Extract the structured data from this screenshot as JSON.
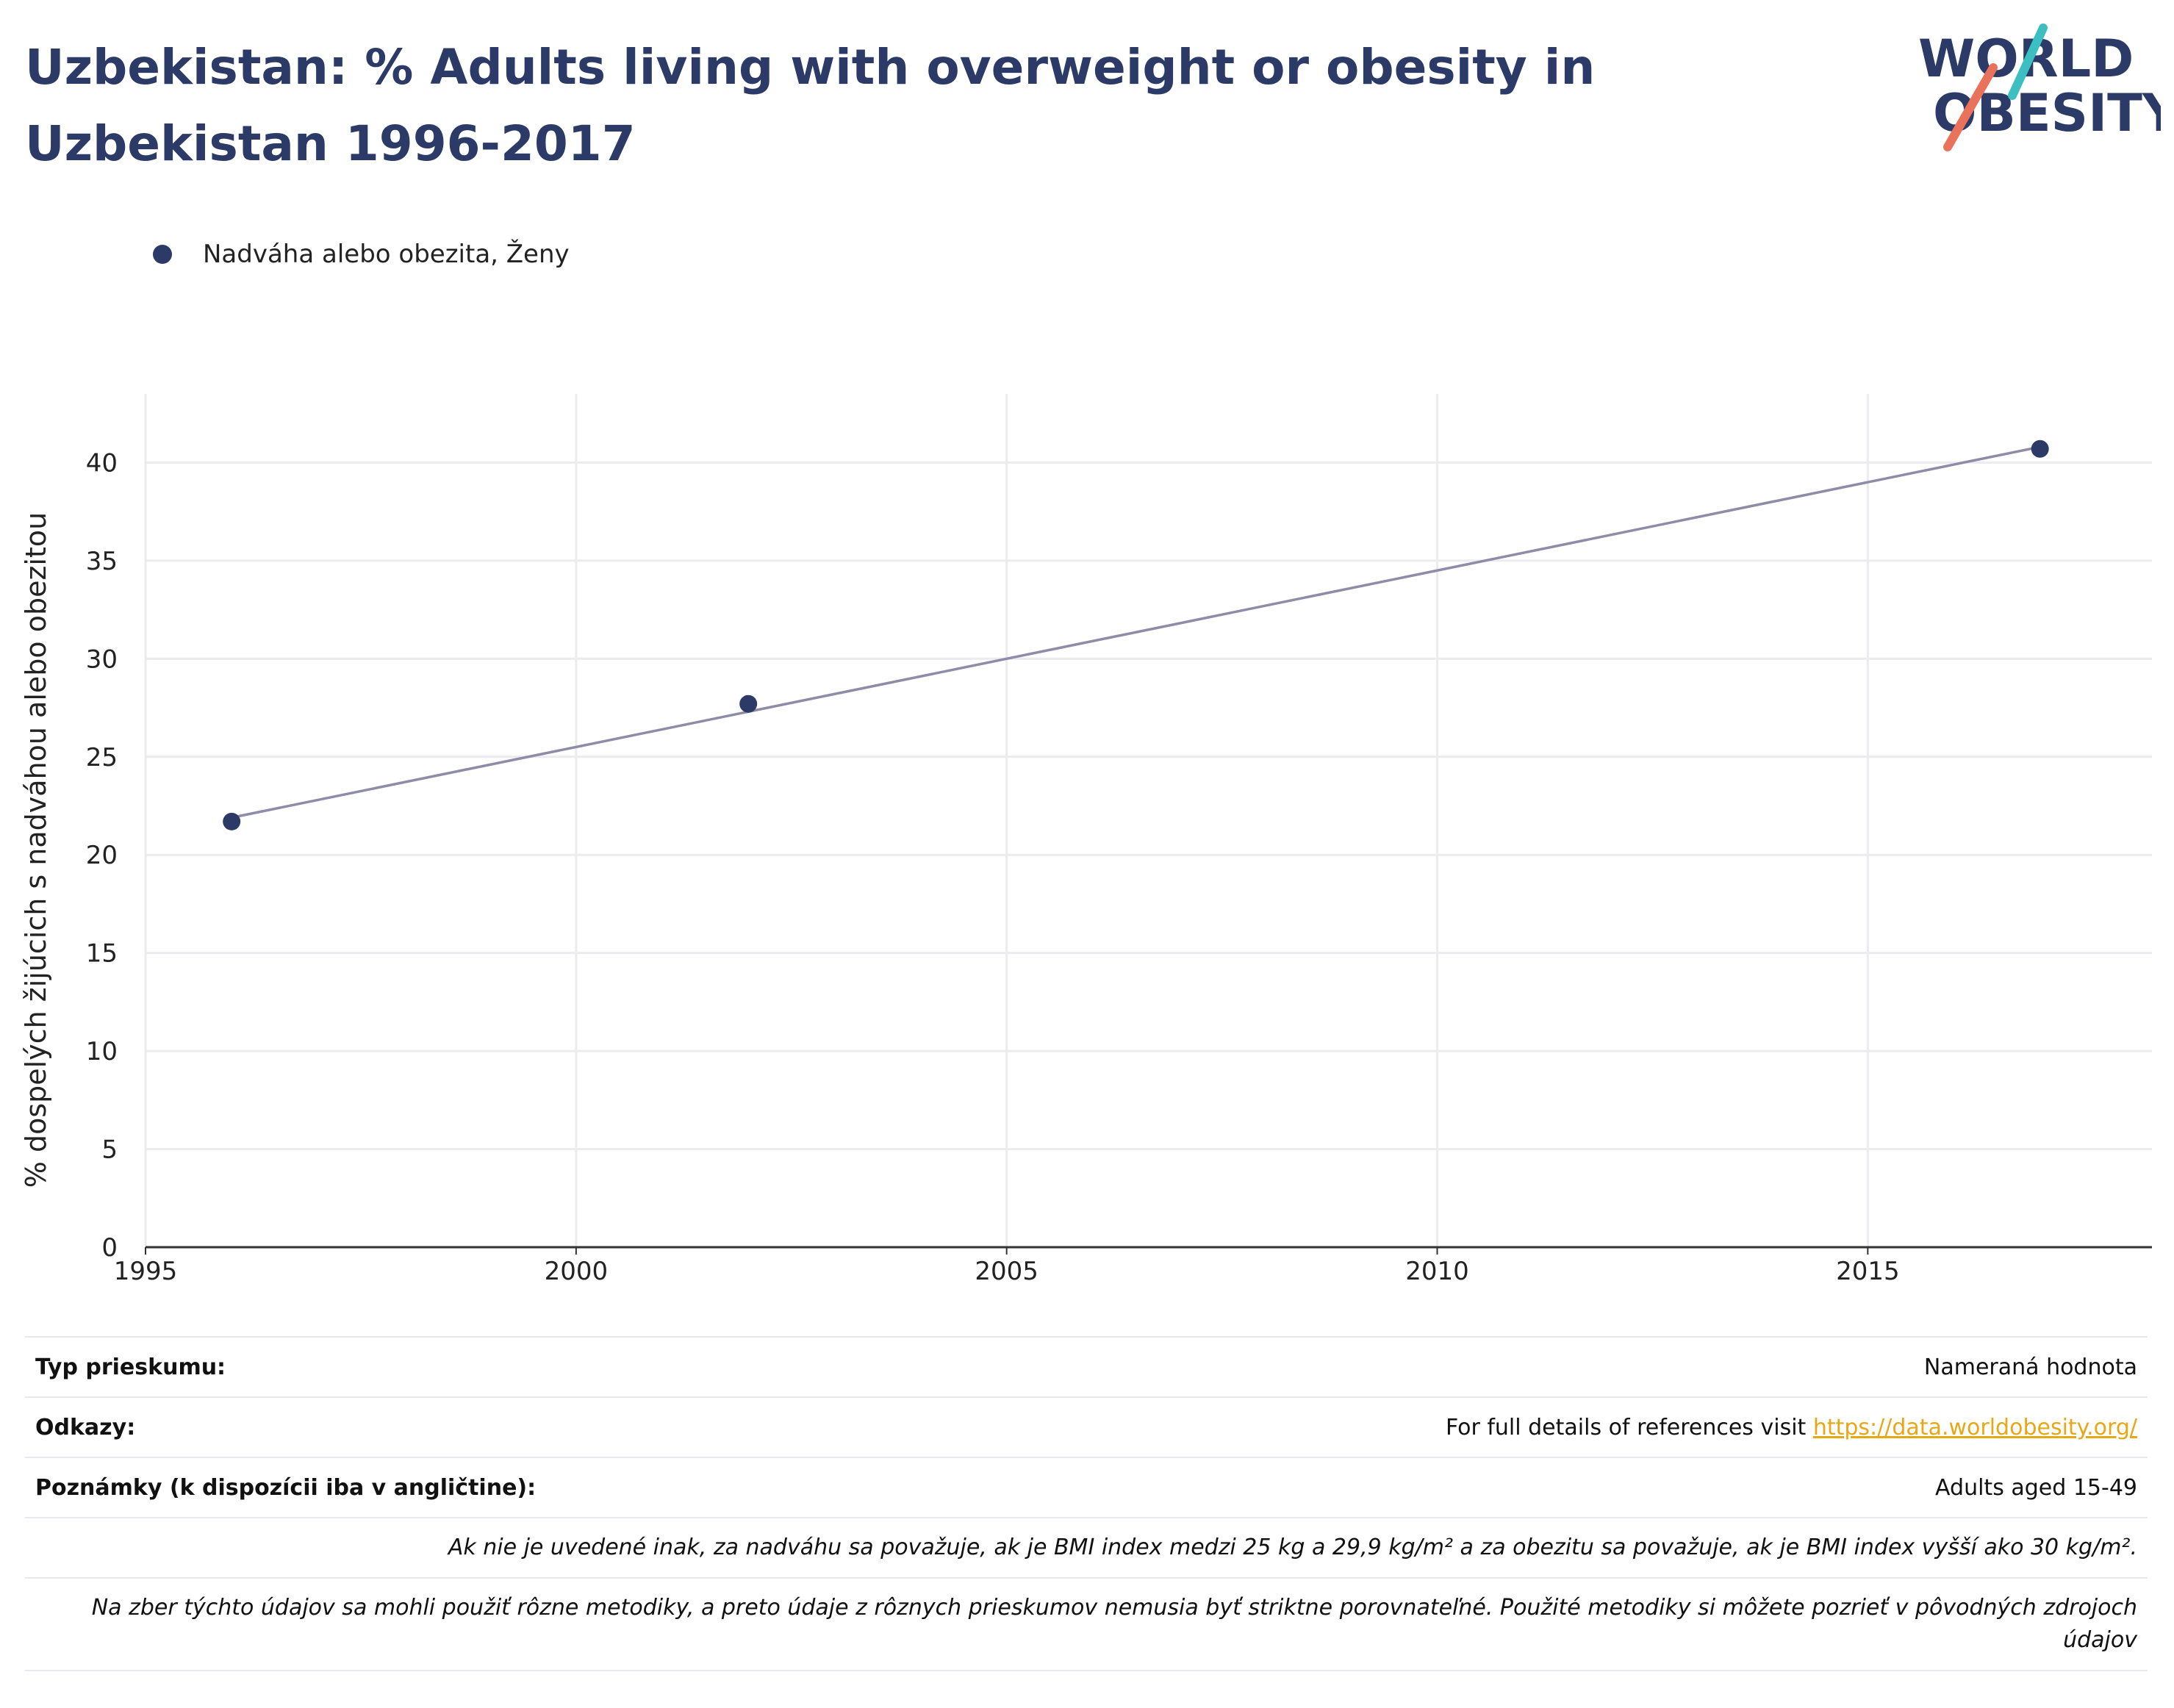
{
  "header": {
    "title": "Uzbekistan: % Adults living with overweight or obesity in Uzbekistan 1996-2017",
    "logo_line1": "WORLD",
    "logo_line2": "OBESITY"
  },
  "colors": {
    "series": "#2b3a67",
    "line": "#8e8ca6",
    "grid": "#ebebf0",
    "link": "#e6a817",
    "logo_teal": "#3bbfc1",
    "logo_coral": "#e8735a"
  },
  "chart_data": {
    "type": "line",
    "title": "Uzbekistan: % Adults living with overweight or obesity in Uzbekistan 1996-2017",
    "ylabel": "% dospelých žijúcich s nadváhou alebo obezitou",
    "xlabel": "",
    "xlim": [
      1995,
      2018.3
    ],
    "ylim": [
      0,
      43.5
    ],
    "x_ticks": [
      1995,
      2000,
      2005,
      2010,
      2015
    ],
    "y_ticks": [
      0,
      5,
      10,
      15,
      20,
      25,
      30,
      35,
      40
    ],
    "grid": true,
    "legend_position": "top-left",
    "series": [
      {
        "name": "Nadváha alebo obezita, Ženy",
        "x": [
          1996,
          2002,
          2017
        ],
        "y": [
          21.7,
          27.7,
          40.7
        ]
      }
    ],
    "trend_line": {
      "x": [
        1996,
        2017
      ],
      "y": [
        21.9,
        40.8
      ]
    }
  },
  "info": {
    "survey_type_label": "Typ prieskumu:",
    "survey_type_value": "Nameraná hodnota",
    "references_label": "Odkazy:",
    "references_text": "For full details of references visit ",
    "references_link": "https://data.worldobesity.org/",
    "notes_label": "Poznámky (k dispozícii iba v angličtine):",
    "notes_value": "Adults aged 15-49",
    "bmi_note": "Ak nie je uvedené inak, za nadváhu sa považuje, ak je BMI index medzi 25 kg a 29,9 kg/m² a za obezitu sa považuje, ak je BMI index vyšší ako 30 kg/m².",
    "method_note": "Na zber týchto údajov sa mohli použiť rôzne metodiky, a preto údaje z rôznych prieskumov nemusia byť striktne porovnateľné. Použité metodiky si môžete pozrieť v pôvodných zdrojoch údajov"
  }
}
